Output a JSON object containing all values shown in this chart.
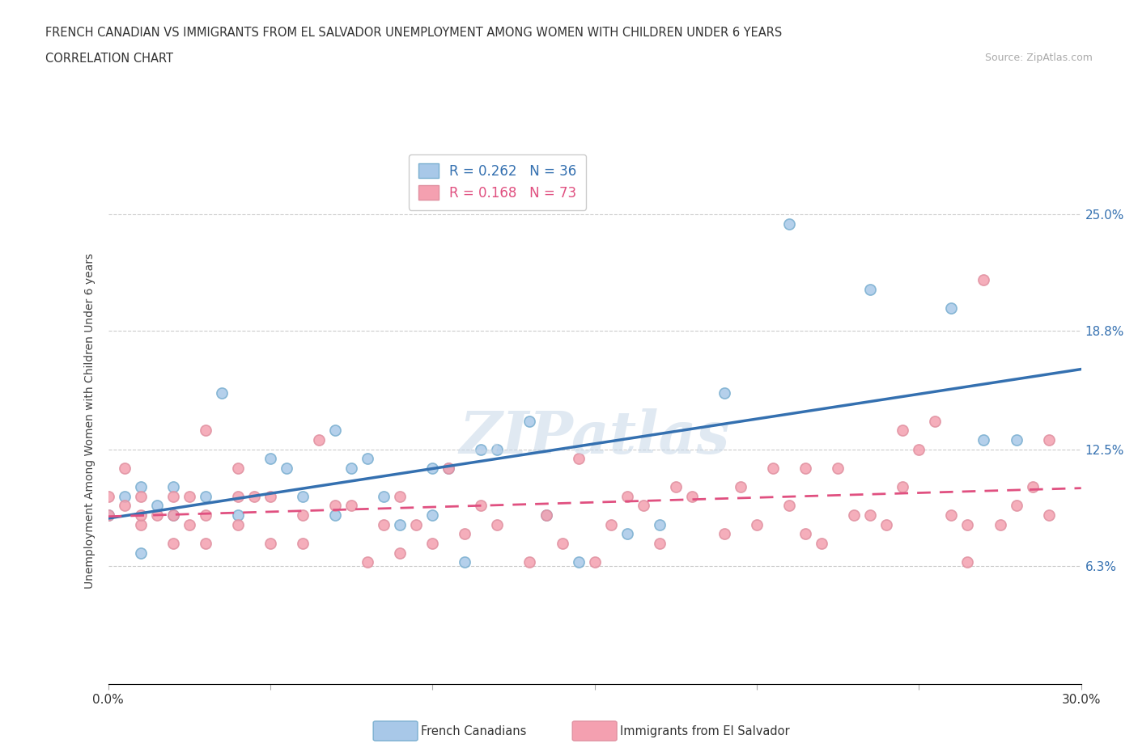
{
  "title_line1": "FRENCH CANADIAN VS IMMIGRANTS FROM EL SALVADOR UNEMPLOYMENT AMONG WOMEN WITH CHILDREN UNDER 6 YEARS",
  "title_line2": "CORRELATION CHART",
  "source_text": "Source: ZipAtlas.com",
  "ylabel": "Unemployment Among Women with Children Under 6 years",
  "xlim": [
    0.0,
    0.3
  ],
  "ylim": [
    0.0,
    0.28
  ],
  "blue_R": 0.262,
  "blue_N": 36,
  "pink_R": 0.168,
  "pink_N": 73,
  "blue_color": "#a8c8e8",
  "pink_color": "#f4a0b0",
  "blue_line_color": "#3470b0",
  "pink_line_color": "#e05080",
  "watermark": "ZIPatlas",
  "blue_points_x": [
    0.0,
    0.005,
    0.01,
    0.01,
    0.015,
    0.02,
    0.02,
    0.03,
    0.035,
    0.04,
    0.05,
    0.055,
    0.06,
    0.07,
    0.07,
    0.075,
    0.08,
    0.085,
    0.09,
    0.1,
    0.1,
    0.105,
    0.11,
    0.115,
    0.12,
    0.13,
    0.135,
    0.145,
    0.16,
    0.17,
    0.19,
    0.21,
    0.235,
    0.26,
    0.27,
    0.28
  ],
  "blue_points_y": [
    0.09,
    0.1,
    0.07,
    0.105,
    0.095,
    0.09,
    0.105,
    0.1,
    0.155,
    0.09,
    0.12,
    0.115,
    0.1,
    0.135,
    0.09,
    0.115,
    0.12,
    0.1,
    0.085,
    0.09,
    0.115,
    0.115,
    0.065,
    0.125,
    0.125,
    0.14,
    0.09,
    0.065,
    0.08,
    0.085,
    0.155,
    0.245,
    0.21,
    0.2,
    0.13,
    0.13
  ],
  "pink_points_x": [
    0.0,
    0.0,
    0.005,
    0.005,
    0.01,
    0.01,
    0.01,
    0.015,
    0.02,
    0.02,
    0.02,
    0.025,
    0.025,
    0.03,
    0.03,
    0.03,
    0.04,
    0.04,
    0.04,
    0.045,
    0.05,
    0.05,
    0.06,
    0.06,
    0.065,
    0.07,
    0.075,
    0.08,
    0.085,
    0.09,
    0.09,
    0.095,
    0.1,
    0.105,
    0.11,
    0.115,
    0.12,
    0.13,
    0.135,
    0.14,
    0.145,
    0.15,
    0.155,
    0.16,
    0.165,
    0.17,
    0.175,
    0.18,
    0.19,
    0.195,
    0.2,
    0.205,
    0.21,
    0.215,
    0.215,
    0.22,
    0.225,
    0.23,
    0.235,
    0.24,
    0.245,
    0.245,
    0.25,
    0.255,
    0.26,
    0.265,
    0.265,
    0.27,
    0.275,
    0.28,
    0.285,
    0.29,
    0.29
  ],
  "pink_points_y": [
    0.09,
    0.1,
    0.095,
    0.115,
    0.085,
    0.09,
    0.1,
    0.09,
    0.075,
    0.09,
    0.1,
    0.085,
    0.1,
    0.075,
    0.09,
    0.135,
    0.085,
    0.1,
    0.115,
    0.1,
    0.075,
    0.1,
    0.075,
    0.09,
    0.13,
    0.095,
    0.095,
    0.065,
    0.085,
    0.07,
    0.1,
    0.085,
    0.075,
    0.115,
    0.08,
    0.095,
    0.085,
    0.065,
    0.09,
    0.075,
    0.12,
    0.065,
    0.085,
    0.1,
    0.095,
    0.075,
    0.105,
    0.1,
    0.08,
    0.105,
    0.085,
    0.115,
    0.095,
    0.115,
    0.08,
    0.075,
    0.115,
    0.09,
    0.09,
    0.085,
    0.105,
    0.135,
    0.125,
    0.14,
    0.09,
    0.065,
    0.085,
    0.215,
    0.085,
    0.095,
    0.105,
    0.13,
    0.09
  ]
}
